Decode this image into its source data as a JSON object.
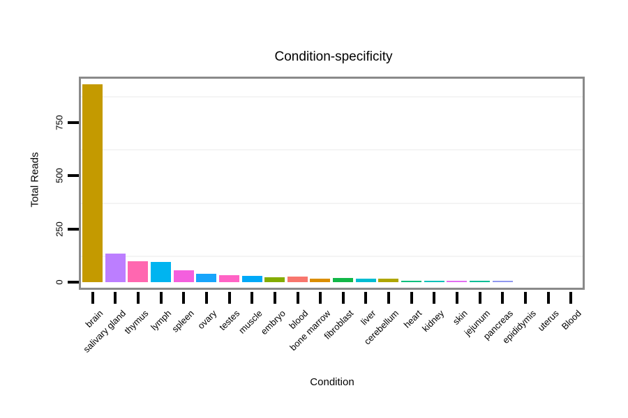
{
  "chart_data": {
    "type": "bar",
    "title": "Condition-specificity",
    "xlabel": "Condition",
    "ylabel": "Total Reads",
    "categories": [
      "brain",
      "salivary gland",
      "thymus",
      "lymph",
      "spleen",
      "ovary",
      "testes",
      "muscle",
      "embryo",
      "blood",
      "bone marrow",
      "fibroblast",
      "liver",
      "cerebellum",
      "heart",
      "kidney",
      "skin",
      "jejunum",
      "pancreas",
      "epididymis",
      "uterus",
      "Blood"
    ],
    "values": [
      930,
      133,
      98,
      95,
      55,
      38,
      32,
      30,
      24,
      26,
      17,
      20,
      17,
      15,
      7,
      7,
      5,
      6,
      5,
      1,
      1,
      0
    ],
    "bar_colors": [
      "#C49A00",
      "#BC7EFF",
      "#FF67B0",
      "#00B4F0",
      "#F45FDE",
      "#18A5FB",
      "#FF63C5",
      "#00A9F8",
      "#84AC00",
      "#F8766D",
      "#DB8E00",
      "#12B748",
      "#00BCD2",
      "#AFA600",
      "#00BE7C",
      "#00C0B8",
      "#E36EF2",
      "#00BD96",
      "#8F97EF",
      "#39B600",
      "#FF6C67",
      "#EA8331"
    ],
    "yticks": [
      0,
      250,
      500,
      750
    ],
    "ytick_labels": [
      "0",
      "250",
      "500",
      "750"
    ],
    "ylim": [
      0,
      960
    ],
    "minor_gridlines": [
      125,
      375,
      625,
      875
    ],
    "grid": "minor-horizontal-only",
    "legend": "none",
    "x_tick_label_rotation_deg": 45,
    "y_tick_label_rotation_deg": 90,
    "colors": {
      "background": "#FFFFFF",
      "panel_border": "#8A8A8A",
      "gridline": "#F4F4F4",
      "tick": "#000000",
      "text": "#000000"
    }
  }
}
